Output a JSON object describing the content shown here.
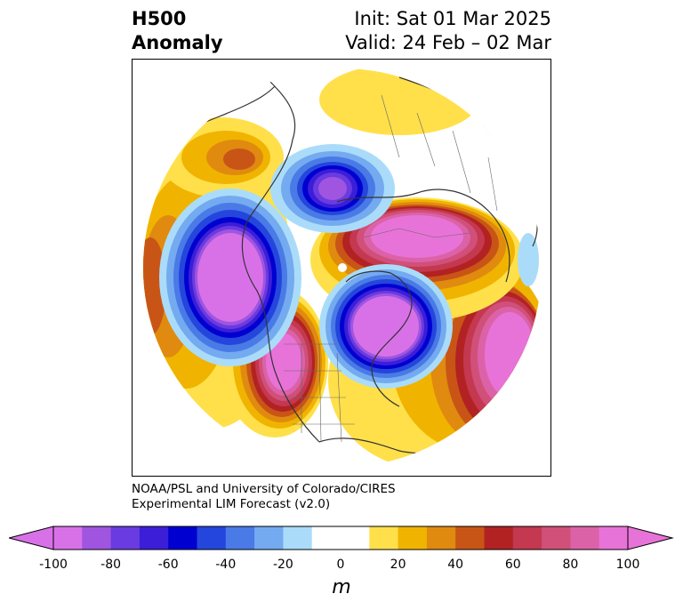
{
  "title": {
    "left_line1": "H500",
    "left_line2": "Anomaly",
    "right_line1": "Init: Sat 01 Mar 2025",
    "right_line2": "Valid: 24 Feb – 02 Mar"
  },
  "credit": {
    "line1": "NOAA/PSL and University of Colorado/CIRES",
    "line2": "Experimental LIM Forecast (v2.0)"
  },
  "colorbar": {
    "unit": "m",
    "ticks": [
      "-100",
      "-80",
      "-60",
      "-40",
      "-20",
      "0",
      "20",
      "40",
      "60",
      "80",
      "100"
    ],
    "colors": [
      "#d871e8",
      "#a055e0",
      "#6a3be0",
      "#3c1ed8",
      "#0000d0",
      "#2446dc",
      "#4a7ae6",
      "#74aaf0",
      "#aadcfa",
      "#ffffff",
      "#ffffff",
      "#ffe04a",
      "#f0b400",
      "#e08a10",
      "#c85516",
      "#b22222",
      "#c43850",
      "#d0507a",
      "#dc62a8",
      "#e873d8"
    ],
    "extend": "both"
  },
  "map": {
    "projection": "north-polar-stereographic",
    "anomalies": [
      {
        "name": "north-pacific-trough",
        "sign": "negative",
        "peak": -100
      },
      {
        "name": "western-north-america-ridge",
        "sign": "positive",
        "peak": 100
      },
      {
        "name": "eastern-canada-trough",
        "sign": "negative",
        "peak": -100
      },
      {
        "name": "north-atlantic-ridge",
        "sign": "positive",
        "peak": 100
      },
      {
        "name": "siberia-ridge",
        "sign": "positive",
        "peak": 100
      },
      {
        "name": "east-siberian-trough",
        "sign": "negative",
        "peak": -100
      },
      {
        "name": "alaska-east-asia-ridge",
        "sign": "positive",
        "peak": 60
      }
    ]
  }
}
